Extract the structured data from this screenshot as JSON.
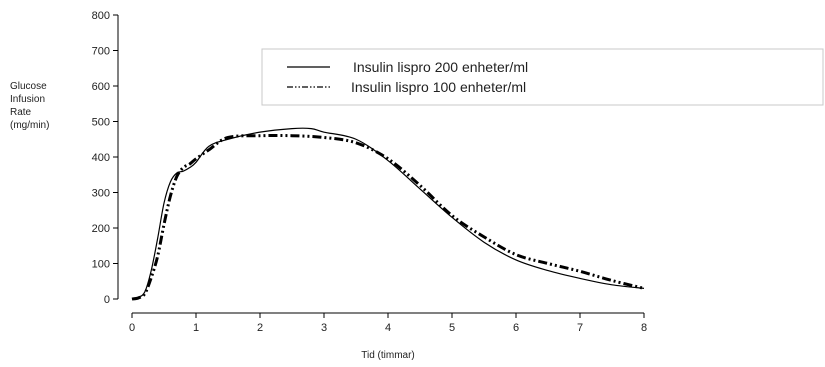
{
  "chart_data": {
    "type": "line",
    "title": "",
    "xlabel": "Tid (timmar)",
    "ylabel": [
      "Glucose",
      "Infusion",
      "Rate",
      "(mg/min)"
    ],
    "xlim": [
      0,
      8
    ],
    "ylim": [
      0,
      800
    ],
    "xticks": [
      0,
      1,
      2,
      3,
      4,
      5,
      6,
      7,
      8
    ],
    "yticks": [
      0,
      100,
      200,
      300,
      400,
      500,
      600,
      700,
      800
    ],
    "grid": false,
    "legend_position": "top-right",
    "series": [
      {
        "name": "Insulin lispro 200 enheter/ml",
        "style": "solid",
        "color": "#000000",
        "x": [
          0,
          0.1,
          0.2,
          0.3,
          0.4,
          0.5,
          0.6,
          0.7,
          0.8,
          0.9,
          1.0,
          1.2,
          1.5,
          2.0,
          2.5,
          2.8,
          3.0,
          3.5,
          4.0,
          4.5,
          5.0,
          5.5,
          6.0,
          6.5,
          7.0,
          7.5,
          8.0
        ],
        "y": [
          0,
          5,
          20,
          80,
          170,
          270,
          330,
          355,
          360,
          370,
          385,
          430,
          450,
          470,
          480,
          480,
          470,
          450,
          390,
          310,
          230,
          160,
          110,
          80,
          58,
          40,
          30
        ]
      },
      {
        "name": "Insulin lispro 100 enheter/ml",
        "style": "dash-dot",
        "color": "#000000",
        "x": [
          0,
          0.1,
          0.2,
          0.3,
          0.4,
          0.5,
          0.6,
          0.7,
          0.8,
          0.9,
          1.0,
          1.2,
          1.5,
          2.0,
          2.5,
          3.0,
          3.5,
          4.0,
          4.5,
          5.0,
          5.5,
          6.0,
          6.5,
          7.0,
          7.5,
          8.0
        ],
        "y": [
          0,
          3,
          15,
          60,
          120,
          210,
          290,
          345,
          370,
          380,
          395,
          420,
          455,
          460,
          460,
          455,
          440,
          395,
          320,
          235,
          175,
          125,
          100,
          78,
          52,
          30
        ]
      }
    ]
  }
}
